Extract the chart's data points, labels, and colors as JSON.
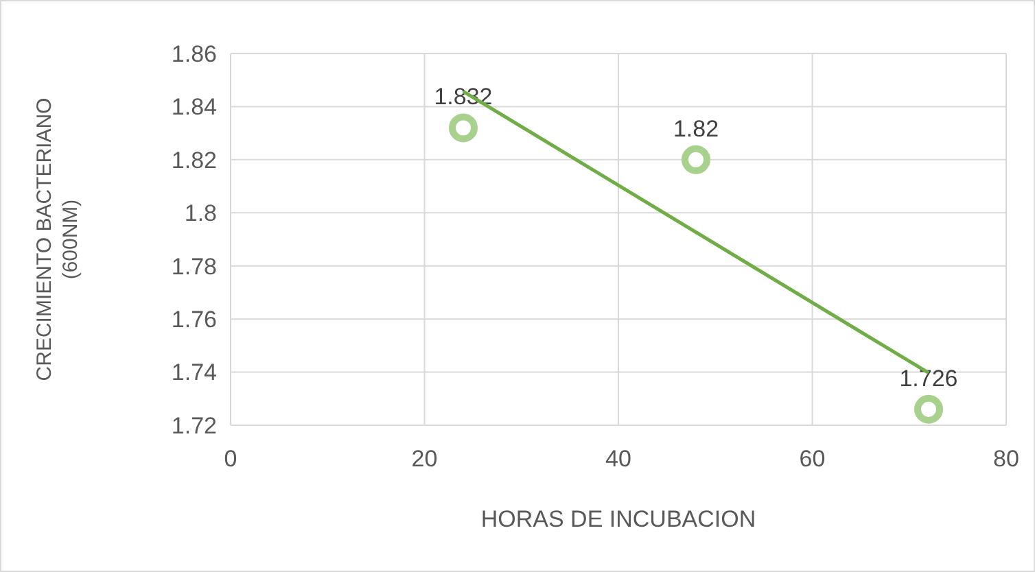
{
  "chart_data": {
    "type": "scatter",
    "xlabel": "HORAS DE INCUBACION",
    "ylabel": "CRECIMIENTO BACTERIANO (600NM)",
    "xlim": [
      0,
      80
    ],
    "xticks": [
      0,
      20,
      40,
      60,
      80
    ],
    "ylim": [
      1.72,
      1.86
    ],
    "yticks": [
      1.72,
      1.74,
      1.76,
      1.78,
      1.8,
      1.82,
      1.84,
      1.86
    ],
    "grid": true,
    "marker": "circle",
    "series": [
      {
        "color": "#a9d18e",
        "x": [
          24,
          48,
          72
        ],
        "values": [
          1.832,
          1.82,
          1.726
        ],
        "value_labels": [
          "1.832",
          "1.82",
          "1.726"
        ]
      },
      {
        "type": "line",
        "color": "#70ad47",
        "x": [
          24,
          72
        ],
        "values": [
          1.8457,
          1.7397
        ],
        "marker": "none",
        "line_style": "solid"
      }
    ]
  }
}
